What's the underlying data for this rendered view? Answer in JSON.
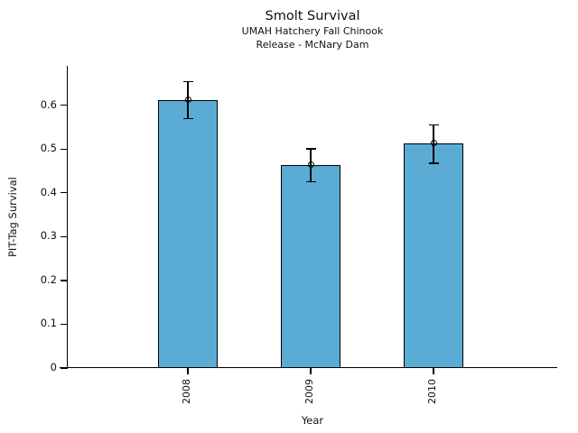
{
  "header": {
    "title": "Smolt Survival",
    "subtitle_line1": "UMAH Hatchery Fall Chinook",
    "subtitle_line2": "Release - McNary Dam"
  },
  "chart_data": {
    "type": "bar",
    "title": "Smolt Survival",
    "subtitle": [
      "UMAH Hatchery Fall Chinook",
      "Release - McNary Dam"
    ],
    "categories": [
      "2008",
      "2009",
      "2010"
    ],
    "values": [
      0.612,
      0.464,
      0.513
    ],
    "error_low": [
      0.569,
      0.425,
      0.468
    ],
    "error_high": [
      0.654,
      0.501,
      0.555
    ],
    "xlabel": "Year",
    "ylabel": "PIT-Tag Survival",
    "ylim": [
      0,
      0.69
    ],
    "y_ticks": [
      0,
      0.1,
      0.2,
      0.3,
      0.4,
      0.5,
      0.6
    ],
    "y_tick_labels": [
      "0",
      "0.1",
      "0.2",
      "0.3",
      "0.4",
      "0.5",
      "0.6"
    ],
    "x_tick_rotation_deg": -90,
    "grid": false,
    "legend": "none",
    "bar_color": "#5BACD5",
    "edge_color": "#000000",
    "marker": "open-circle"
  }
}
